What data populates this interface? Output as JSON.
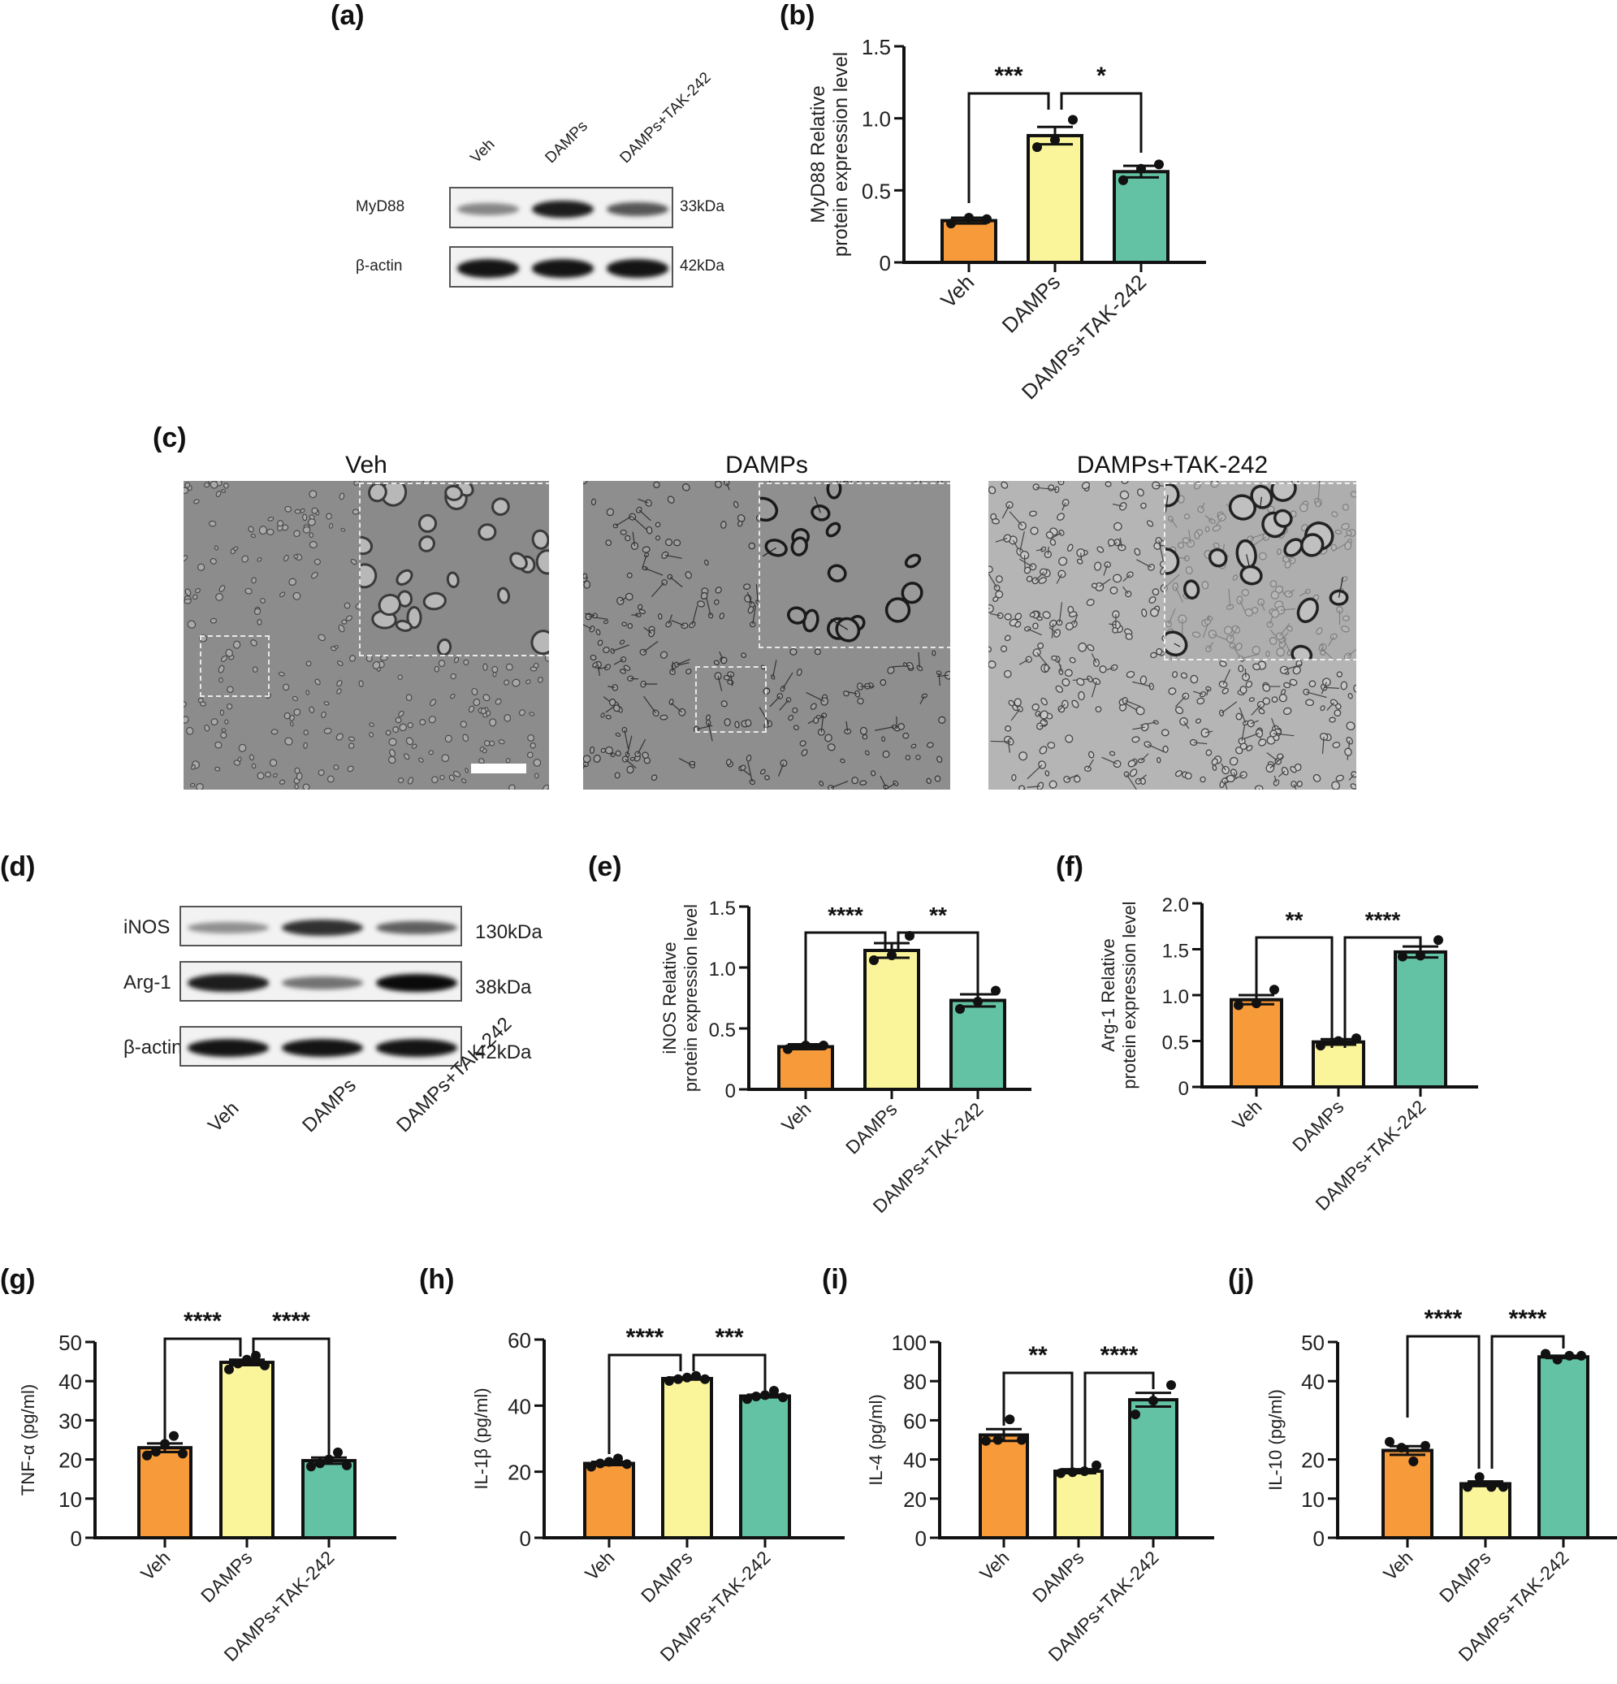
{
  "figure": {
    "panel_labels": [
      "(a)",
      "(b)",
      "(c)",
      "(d)",
      "(e)",
      "(f)",
      "(g)",
      "(h)",
      "(i)",
      "(j)"
    ],
    "groups": [
      "Veh",
      "DAMPs",
      "DAMPs+TAK-242"
    ],
    "colors": {
      "veh": "#F79A3A",
      "damps": "#FAF59A",
      "tak": "#63C2A4",
      "axis": "#111111"
    }
  },
  "panel_a": {
    "label": "(a)",
    "lanes": [
      "Veh",
      "DAMPs",
      "DAMPs+TAK-242"
    ],
    "rows": [
      {
        "protein": "MyD88",
        "kda": "33kDa",
        "intensity": [
          0.35,
          0.9,
          0.6
        ]
      },
      {
        "protein": "β-actin",
        "kda": "42kDa",
        "intensity": [
          0.95,
          0.95,
          0.95
        ]
      }
    ]
  },
  "panel_c": {
    "label": "(c)",
    "titles": [
      "Veh",
      "DAMPs",
      "DAMPs+TAK-242"
    ],
    "scale_bar": "scale-bar"
  },
  "panel_d": {
    "label": "(d)",
    "lanes": [
      "Veh",
      "DAMPs",
      "DAMPs+TAK-242"
    ],
    "rows": [
      {
        "protein": "iNOS",
        "kda": "130kDa",
        "intensity": [
          0.3,
          0.8,
          0.55
        ]
      },
      {
        "protein": "Arg-1",
        "kda": "38kDa",
        "intensity": [
          0.9,
          0.45,
          1.0
        ]
      },
      {
        "protein": "β-actin",
        "kda": "42kDa",
        "intensity": [
          0.95,
          0.95,
          0.95
        ]
      }
    ]
  },
  "chart_data": [
    {
      "panel": "(b)",
      "type": "bar",
      "title": "",
      "xlabel": "",
      "ylabel": "MyD88 Relative protein expression level",
      "ylabel_lines": [
        "MyD88 Relative",
        "protein expression level"
      ],
      "categories": [
        "Veh",
        "DAMPs",
        "DAMPs+TAK-242"
      ],
      "values": [
        0.29,
        0.88,
        0.63
      ],
      "sem": [
        0.02,
        0.06,
        0.04
      ],
      "points": [
        [
          0.27,
          0.31,
          0.3
        ],
        [
          0.8,
          0.85,
          0.99
        ],
        [
          0.57,
          0.65,
          0.68
        ]
      ],
      "ylim": [
        0,
        1.5
      ],
      "yticks": [
        0,
        0.5,
        1.0,
        1.5
      ],
      "ytick_labels": [
        "0",
        "0.5",
        "1.0",
        "1.5"
      ],
      "significance": [
        {
          "from": 0,
          "to": 1,
          "label": "***"
        },
        {
          "from": 1,
          "to": 2,
          "label": "*"
        }
      ],
      "grid": false,
      "legend": false
    },
    {
      "panel": "(e)",
      "type": "bar",
      "title": "",
      "xlabel": "",
      "ylabel": "iNOS Relative protein expression level",
      "ylabel_lines": [
        "iNOS Relative",
        "protein expression level"
      ],
      "categories": [
        "Veh",
        "DAMPs",
        "DAMPs+TAK-242"
      ],
      "values": [
        0.35,
        1.14,
        0.73
      ],
      "sem": [
        0.02,
        0.06,
        0.05
      ],
      "points": [
        [
          0.33,
          0.36,
          0.36
        ],
        [
          1.06,
          1.1,
          1.26
        ],
        [
          0.66,
          0.72,
          0.81
        ]
      ],
      "ylim": [
        0,
        1.5
      ],
      "yticks": [
        0,
        0.5,
        1.0,
        1.5
      ],
      "ytick_labels": [
        "0",
        "0.5",
        "1.0",
        "1.5"
      ],
      "significance": [
        {
          "from": 0,
          "to": 1,
          "label": "****"
        },
        {
          "from": 1,
          "to": 2,
          "label": "**"
        }
      ],
      "grid": false,
      "legend": false
    },
    {
      "panel": "(f)",
      "type": "bar",
      "title": "",
      "xlabel": "",
      "ylabel": "Arg-1 Relative protein expression level",
      "ylabel_lines": [
        "Arg-1 Relative",
        "protein expression level"
      ],
      "categories": [
        "Veh",
        "DAMPs",
        "DAMPs+TAK-242"
      ],
      "values": [
        0.95,
        0.49,
        1.47
      ],
      "sem": [
        0.05,
        0.03,
        0.06
      ],
      "points": [
        [
          0.89,
          0.91,
          1.06
        ],
        [
          0.45,
          0.5,
          0.53
        ],
        [
          1.42,
          1.43,
          1.6
        ]
      ],
      "ylim": [
        0,
        2.0
      ],
      "yticks": [
        0,
        0.5,
        1.0,
        1.5,
        2.0
      ],
      "ytick_labels": [
        "0",
        "0.5",
        "1.0",
        "1.5",
        "2.0"
      ],
      "significance": [
        {
          "from": 0,
          "to": 1,
          "label": "**"
        },
        {
          "from": 1,
          "to": 2,
          "label": "****"
        }
      ],
      "grid": false,
      "legend": false
    },
    {
      "panel": "(g)",
      "type": "bar",
      "title": "",
      "xlabel": "",
      "ylabel": "TNF-α (pg/ml)",
      "ylabel_lines": [
        "TNF-α (pg/ml)"
      ],
      "categories": [
        "Veh",
        "DAMPs",
        "DAMPs+TAK-242"
      ],
      "values": [
        23.0,
        44.8,
        19.7
      ],
      "sem": [
        1.1,
        0.7,
        0.8
      ],
      "points": [
        [
          21.0,
          22.0,
          24.0,
          26.0,
          21.5
        ],
        [
          43.0,
          44.5,
          45.5,
          46.5,
          44.0
        ],
        [
          18.2,
          19.0,
          20.0,
          21.8,
          18.5
        ]
      ],
      "ylim": [
        0,
        50
      ],
      "yticks": [
        0,
        10,
        20,
        30,
        40,
        50
      ],
      "ytick_labels": [
        "0",
        "10",
        "20",
        "30",
        "40",
        "50"
      ],
      "significance": [
        {
          "from": 0,
          "to": 1,
          "label": "****"
        },
        {
          "from": 1,
          "to": 2,
          "label": "****"
        }
      ],
      "grid": false,
      "legend": false
    },
    {
      "panel": "(h)",
      "type": "bar",
      "title": "",
      "xlabel": "",
      "ylabel": "IL-1β (pg/ml)",
      "ylabel_lines": [
        "IL-1β (pg/ml)"
      ],
      "categories": [
        "Veh",
        "DAMPs",
        "DAMPs+TAK-242"
      ],
      "values": [
        22.5,
        48.2,
        42.9
      ],
      "sem": [
        0.5,
        0.3,
        0.4
      ],
      "points": [
        [
          21.5,
          22.5,
          23.0,
          24.0,
          22.3
        ],
        [
          47.5,
          48.0,
          48.5,
          49.0,
          48.0
        ],
        [
          42.0,
          42.8,
          43.2,
          44.5,
          42.5
        ]
      ],
      "ylim": [
        0,
        60
      ],
      "yticks": [
        0,
        20,
        40,
        60
      ],
      "ytick_labels": [
        "0",
        "20",
        "40",
        "60"
      ],
      "significance": [
        {
          "from": 0,
          "to": 1,
          "label": "****"
        },
        {
          "from": 1,
          "to": 2,
          "label": "***"
        }
      ],
      "grid": false,
      "legend": false
    },
    {
      "panel": "(i)",
      "type": "bar",
      "title": "",
      "xlabel": "",
      "ylabel": "IL-4 (pg/ml)",
      "ylabel_lines": [
        "IL-4  (pg/ml)"
      ],
      "categories": [
        "Veh",
        "DAMPs",
        "DAMPs+TAK-242"
      ],
      "values": [
        52.5,
        34.0,
        70.5
      ],
      "sem": [
        3.0,
        1.0,
        3.5
      ],
      "points": [
        [
          49.5,
          50.0,
          60.5,
          50.0
        ],
        [
          33.0,
          33.5,
          34.0,
          37.0
        ],
        [
          63.0,
          70.0,
          78.0
        ]
      ],
      "ylim": [
        0,
        100
      ],
      "yticks": [
        0,
        20,
        40,
        60,
        80,
        100
      ],
      "ytick_labels": [
        "0",
        "20",
        "40",
        "60",
        "80",
        "100"
      ],
      "significance": [
        {
          "from": 0,
          "to": 1,
          "label": "**"
        },
        {
          "from": 1,
          "to": 2,
          "label": "****"
        }
      ],
      "grid": false,
      "legend": false
    },
    {
      "panel": "(j)",
      "type": "bar",
      "title": "",
      "xlabel": "",
      "ylabel": "IL-10 (pg/ml)",
      "ylabel_lines": [
        "IL-10 (pg/ml)"
      ],
      "categories": [
        "Veh",
        "DAMPs",
        "DAMPs+TAK-242"
      ],
      "values": [
        22.3,
        13.8,
        46.2
      ],
      "sem": [
        1.1,
        0.6,
        0.3
      ],
      "points": [
        [
          24.5,
          23.0,
          19.5,
          23.5
        ],
        [
          13.0,
          15.5,
          13.0,
          13.0
        ],
        [
          47.0,
          45.5,
          46.5,
          46.5
        ]
      ],
      "ylim": [
        0,
        50
      ],
      "yticks": [
        0,
        10,
        20,
        40,
        50
      ],
      "ytick_labels": [
        "0",
        "10",
        "20",
        "40",
        "50"
      ],
      "significance": [
        {
          "from": 0,
          "to": 1,
          "label": "****"
        },
        {
          "from": 1,
          "to": 2,
          "label": "****"
        }
      ],
      "grid": false,
      "legend": false
    }
  ]
}
